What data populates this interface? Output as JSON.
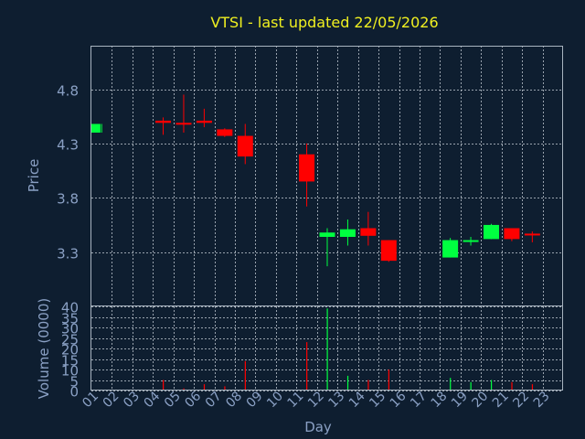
{
  "chart_data": {
    "type": "candlestick",
    "title": "VTSI - last updated 22/05/2026",
    "xlabel": "Day",
    "categories": [
      "01",
      "02",
      "03",
      "04",
      "05",
      "06",
      "07",
      "08",
      "09",
      "10",
      "11",
      "12",
      "13",
      "14",
      "15",
      "16",
      "17",
      "18",
      "19",
      "20",
      "21",
      "22",
      "23"
    ],
    "price_panel": {
      "ylabel": "Price",
      "ylim": [
        2.8,
        5.2
      ],
      "yticks": [
        "4.8",
        "4.3",
        "3.8",
        "3.3"
      ],
      "candles": [
        {
          "day": "01",
          "open": 4.4,
          "high": 4.48,
          "low": 4.4,
          "close": 4.48
        },
        {
          "day": "04",
          "open": 4.51,
          "high": 4.54,
          "low": 4.38,
          "close": 4.49
        },
        {
          "day": "05",
          "open": 4.49,
          "high": 4.75,
          "low": 4.4,
          "close": 4.48
        },
        {
          "day": "06",
          "open": 4.51,
          "high": 4.62,
          "low": 4.45,
          "close": 4.49
        },
        {
          "day": "07",
          "open": 4.43,
          "high": 4.44,
          "low": 4.36,
          "close": 4.37
        },
        {
          "day": "08",
          "open": 4.37,
          "high": 4.48,
          "low": 4.11,
          "close": 4.18
        },
        {
          "day": "11",
          "open": 4.2,
          "high": 4.3,
          "low": 3.72,
          "close": 3.95
        },
        {
          "day": "12",
          "open": 3.44,
          "high": 3.52,
          "low": 3.17,
          "close": 3.48
        },
        {
          "day": "13",
          "open": 3.44,
          "high": 3.6,
          "low": 3.36,
          "close": 3.51
        },
        {
          "day": "14",
          "open": 3.52,
          "high": 3.67,
          "low": 3.36,
          "close": 3.45
        },
        {
          "day": "15",
          "open": 3.41,
          "high": 3.41,
          "low": 3.21,
          "close": 3.22
        },
        {
          "day": "18",
          "open": 3.25,
          "high": 3.43,
          "low": 3.25,
          "close": 3.41
        },
        {
          "day": "19",
          "open": 3.4,
          "high": 3.44,
          "low": 3.36,
          "close": 3.41
        },
        {
          "day": "20",
          "open": 3.42,
          "high": 3.56,
          "low": 3.42,
          "close": 3.55
        },
        {
          "day": "21",
          "open": 3.52,
          "high": 3.52,
          "low": 3.4,
          "close": 3.42
        },
        {
          "day": "22",
          "open": 3.47,
          "high": 3.49,
          "low": 3.39,
          "close": 3.46
        }
      ]
    },
    "volume_panel": {
      "ylabel": "Volume (0000)",
      "ylim": [
        0,
        40
      ],
      "yticks": [
        "40",
        "35",
        "30",
        "25",
        "20",
        "15",
        "10",
        "5",
        "0"
      ],
      "bars": [
        {
          "day": "04",
          "value": 5,
          "color": "red"
        },
        {
          "day": "05",
          "value": 1,
          "color": "red"
        },
        {
          "day": "06",
          "value": 3,
          "color": "red"
        },
        {
          "day": "07",
          "value": 2,
          "color": "red"
        },
        {
          "day": "08",
          "value": 14,
          "color": "red"
        },
        {
          "day": "11",
          "value": 23,
          "color": "red"
        },
        {
          "day": "12",
          "value": 39,
          "color": "green"
        },
        {
          "day": "13",
          "value": 7,
          "color": "green"
        },
        {
          "day": "14",
          "value": 5,
          "color": "red"
        },
        {
          "day": "15",
          "value": 10,
          "color": "red"
        },
        {
          "day": "18",
          "value": 6,
          "color": "green"
        },
        {
          "day": "19",
          "value": 4,
          "color": "green"
        },
        {
          "day": "20",
          "value": 5,
          "color": "green"
        },
        {
          "day": "21",
          "value": 4,
          "color": "red"
        },
        {
          "day": "22",
          "value": 3,
          "color": "red"
        }
      ]
    },
    "colors": {
      "up": "#00ff40",
      "down": "#ff0000",
      "grid": "#c8d0d8",
      "title": "#f0f020",
      "label": "#8aa0c4",
      "background": "#0e1e30"
    },
    "grid": true
  }
}
